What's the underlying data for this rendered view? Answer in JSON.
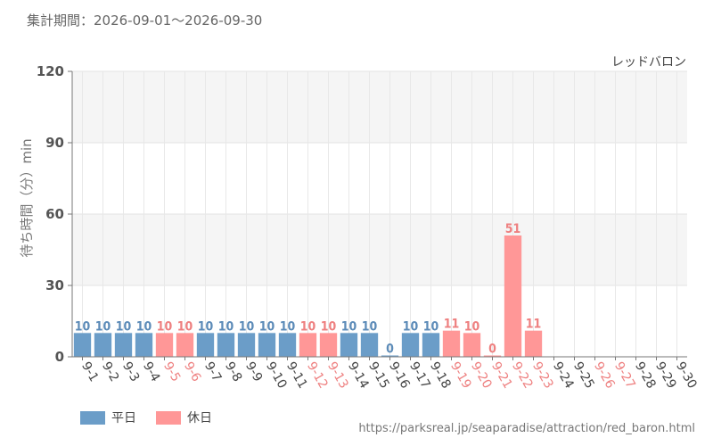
{
  "header": {
    "period": "集計期間：2026-09-01～2026-09-30"
  },
  "colors": {
    "weekday": "#6b9dc8",
    "holiday": "#ff9797",
    "weekday_text": "#5c8bb8",
    "holiday_text": "#ee8080",
    "axis_text": "#555555"
  },
  "chart_data": {
    "type": "bar",
    "title": "レッドバロン",
    "xlabel": "",
    "ylabel": "待ち時間（分）min",
    "ylim": [
      0,
      120
    ],
    "yticks": [
      0,
      30,
      60,
      90,
      120
    ],
    "grid": true,
    "legend_position": "bottom-left",
    "categories": [
      "9-1",
      "9-2",
      "9-3",
      "9-4",
      "9-5",
      "9-6",
      "9-7",
      "9-8",
      "9-9",
      "9-10",
      "9-11",
      "9-12",
      "9-13",
      "9-14",
      "9-15",
      "9-16",
      "9-17",
      "9-18",
      "9-19",
      "9-20",
      "9-21",
      "9-22",
      "9-23",
      "9-24",
      "9-25",
      "9-26",
      "9-27",
      "9-28",
      "9-29",
      "9-30"
    ],
    "values": [
      10,
      10,
      10,
      10,
      10,
      10,
      10,
      10,
      10,
      10,
      10,
      10,
      10,
      10,
      10,
      0,
      10,
      10,
      11,
      10,
      0,
      51,
      11,
      null,
      null,
      null,
      null,
      null,
      null,
      null
    ],
    "day_type": [
      "weekday",
      "weekday",
      "weekday",
      "weekday",
      "holiday",
      "holiday",
      "weekday",
      "weekday",
      "weekday",
      "weekday",
      "weekday",
      "holiday",
      "holiday",
      "weekday",
      "weekday",
      "weekday",
      "weekday",
      "weekday",
      "holiday",
      "holiday",
      "holiday",
      "holiday",
      "holiday",
      "weekday",
      "weekday",
      "holiday",
      "holiday",
      "weekday",
      "weekday",
      "weekday"
    ],
    "series": [
      {
        "name": "平日",
        "color": "#6b9dc8"
      },
      {
        "name": "休日",
        "color": "#ff9797"
      }
    ]
  },
  "legend": {
    "weekday_label": "平日",
    "holiday_label": "休日"
  },
  "footer": {
    "source": "https://parksreal.jp/seaparadise/attraction/red_baron.html"
  }
}
